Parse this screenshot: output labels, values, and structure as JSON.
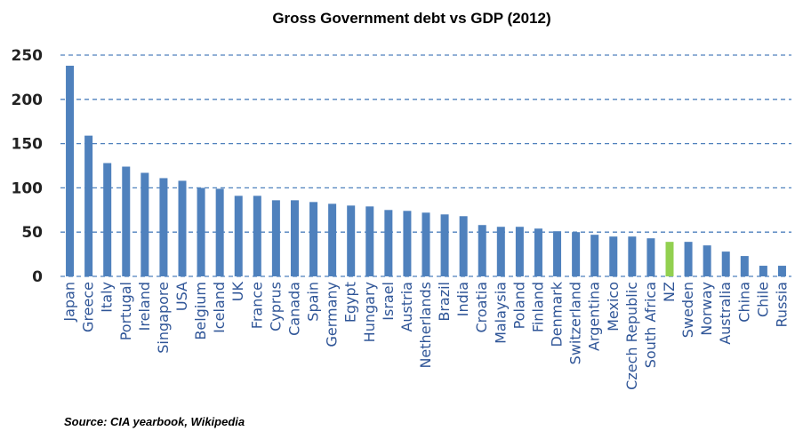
{
  "chart_data": {
    "type": "bar",
    "title": "Gross Government debt vs GDP (2012)",
    "xlabel": "",
    "ylabel": "",
    "ylim": [
      0,
      250
    ],
    "yticks": [
      0,
      50,
      100,
      150,
      200,
      250
    ],
    "grid": "horizontal-dashed",
    "colors": {
      "bar": "#4f81bd",
      "highlight": "#92d050",
      "grid": "#4f81bd",
      "label": "#2f5597"
    },
    "highlight_category": "NZ",
    "categories": [
      "Japan",
      "Greece",
      "Italy",
      "Portugal",
      "Ireland",
      "Singapore",
      "USA",
      "Belgium",
      "Iceland",
      "UK",
      "France",
      "Cyprus",
      "Canada",
      "Spain",
      "Germany",
      "Egypt",
      "Hungary",
      "Israel",
      "Austria",
      "Netherlands",
      "Brazil",
      "India",
      "Croatia",
      "Malaysia",
      "Poland",
      "Finland",
      "Denmark",
      "Switzerland",
      "Argentina",
      "Mexico",
      "Czech Republic",
      "South Africa",
      "NZ",
      "Sweden",
      "Norway",
      "Australia",
      "China",
      "Chile",
      "Russia"
    ],
    "values": [
      238,
      159,
      128,
      124,
      117,
      111,
      108,
      100,
      99,
      91,
      91,
      86,
      86,
      84,
      82,
      80,
      79,
      75,
      74,
      72,
      70,
      68,
      58,
      56,
      56,
      54,
      51,
      50,
      47,
      45,
      45,
      43,
      39,
      39,
      35,
      28,
      23,
      12,
      12
    ]
  },
  "source": "Source: CIA yearbook, Wikipedia"
}
